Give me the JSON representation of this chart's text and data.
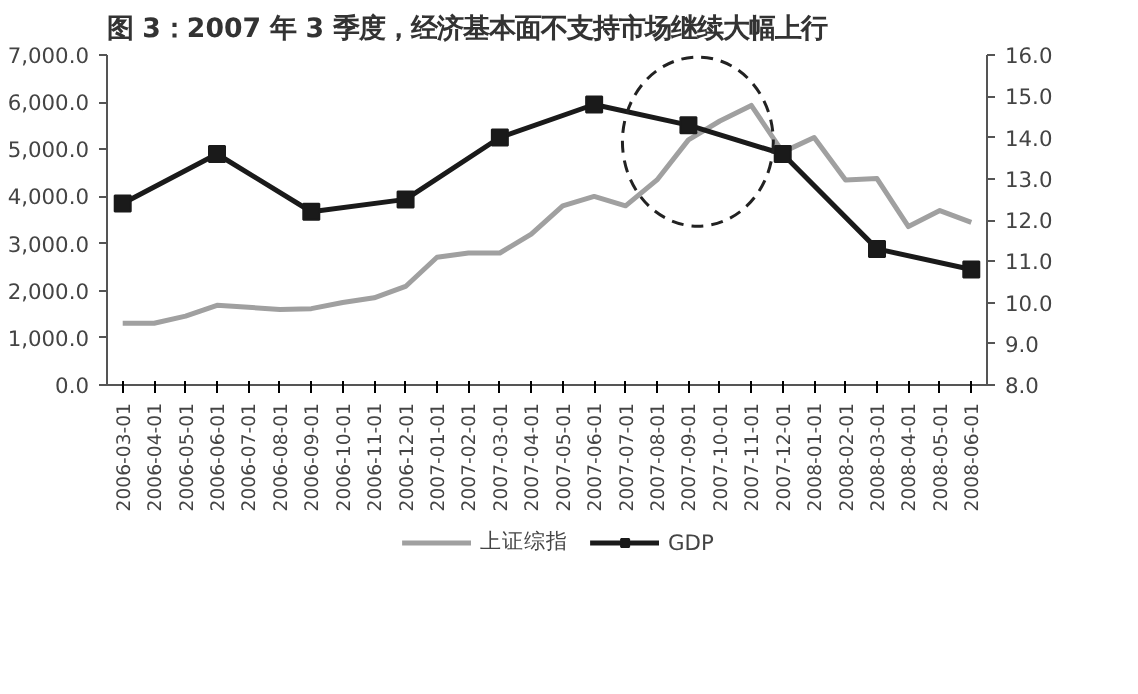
{
  "chart_data": {
    "type": "line",
    "title": "图 3：2007 年 3 季度，经济基本面不支持市场继续大幅上行",
    "categories": [
      "2006-03-01",
      "2006-04-01",
      "2006-05-01",
      "2006-06-01",
      "2006-07-01",
      "2006-08-01",
      "2006-09-01",
      "2006-10-01",
      "2006-11-01",
      "2006-12-01",
      "2007-01-01",
      "2007-02-01",
      "2007-03-01",
      "2007-04-01",
      "2007-05-01",
      "2007-06-01",
      "2007-07-01",
      "2007-08-01",
      "2007-09-01",
      "2007-10-01",
      "2007-11-01",
      "2007-12-01",
      "2008-01-01",
      "2008-02-01",
      "2008-03-01",
      "2008-04-01",
      "2008-05-01",
      "2008-06-01"
    ],
    "series": [
      {
        "name": "上证综指",
        "color": "#a0a0a0",
        "marker": "none",
        "values": [
          1310,
          1310,
          1460,
          1690,
          1650,
          1600,
          1620,
          1750,
          1850,
          2090,
          2710,
          2800,
          2800,
          3200,
          3800,
          4000,
          3800,
          4350,
          5200,
          5600,
          5930,
          4940,
          5250,
          4350,
          4380,
          3360,
          3700,
          3450
        ]
      },
      {
        "name": "GDP",
        "color": "#1a1a1a",
        "marker": "square",
        "axis": "y2",
        "values": [
          12.4,
          null,
          null,
          13.6,
          null,
          null,
          12.2,
          null,
          null,
          12.5,
          null,
          null,
          14.0,
          null,
          null,
          14.8,
          null,
          null,
          14.3,
          null,
          null,
          13.6,
          null,
          null,
          11.3,
          null,
          null,
          10.8
        ]
      }
    ],
    "ylim": [
      0,
      7000
    ],
    "yticks": [
      {
        "value": 0,
        "label": "0.0"
      },
      {
        "value": 1000,
        "label": "1,000.0"
      },
      {
        "value": 2000,
        "label": "2,000.0"
      },
      {
        "value": 3000,
        "label": "3,000.0"
      },
      {
        "value": 4000,
        "label": "4,000.0"
      },
      {
        "value": 5000,
        "label": "5,000.0"
      },
      {
        "value": 6000,
        "label": "6,000.0"
      },
      {
        "value": 7000,
        "label": "7,000.0"
      }
    ],
    "y2lim": [
      8,
      16
    ],
    "y2ticks": [
      {
        "value": 8,
        "label": "8.0"
      },
      {
        "value": 9,
        "label": "9.0"
      },
      {
        "value": 10,
        "label": "10.0"
      },
      {
        "value": 11,
        "label": "11.0"
      },
      {
        "value": 12,
        "label": "12.0"
      },
      {
        "value": 13,
        "label": "13.0"
      },
      {
        "value": 14,
        "label": "14.0"
      },
      {
        "value": 15,
        "label": "15.0"
      },
      {
        "value": 16,
        "label": "16.0"
      }
    ],
    "grid": false,
    "legend": "bottom",
    "line_style": "solid"
  }
}
